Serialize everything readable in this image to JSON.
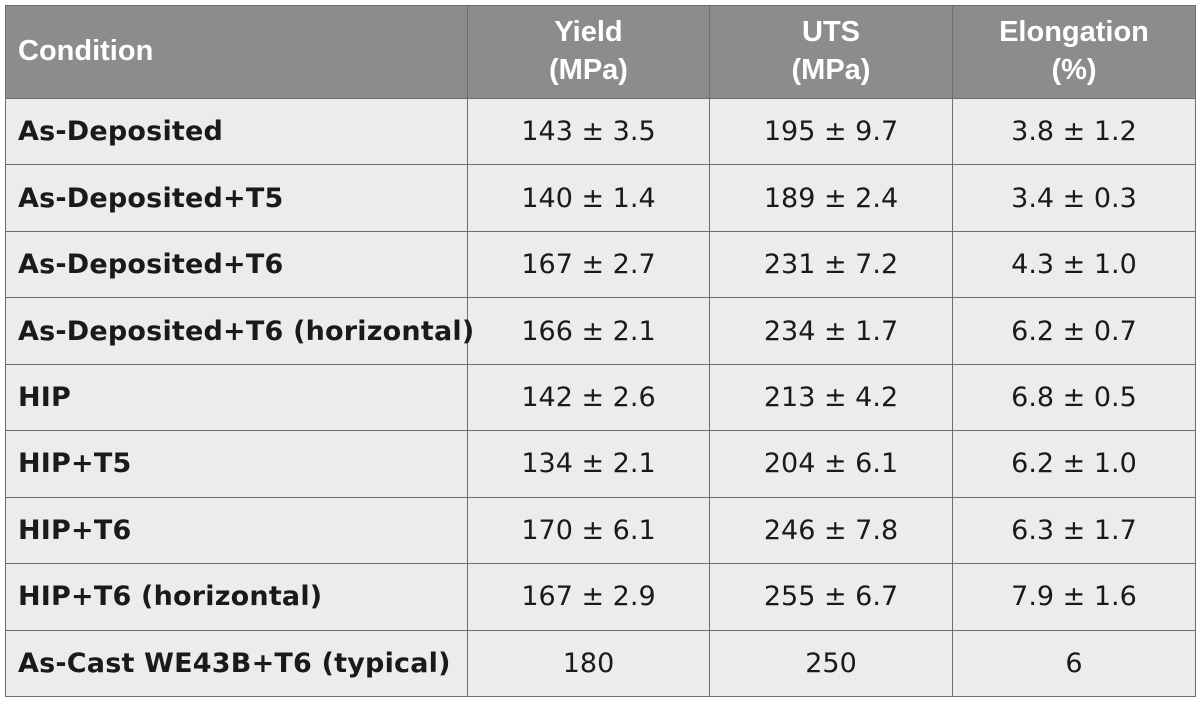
{
  "table": {
    "headers": [
      {
        "line1": "Condition",
        "line2": ""
      },
      {
        "line1": "Yield",
        "line2": "(MPa)"
      },
      {
        "line1": "UTS",
        "line2": "(MPa)"
      },
      {
        "line1": "Elongation",
        "line2": "(%)"
      }
    ],
    "rows": [
      {
        "condition": "As-Deposited",
        "yield": "143 ± 3.5",
        "uts": "195 ± 9.7",
        "elongation": "3.8 ± 1.2"
      },
      {
        "condition": "As-Deposited+T5",
        "yield": "140 ± 1.4",
        "uts": "189 ± 2.4",
        "elongation": "3.4 ± 0.3"
      },
      {
        "condition": "As-Deposited+T6",
        "yield": "167 ± 2.7",
        "uts": "231 ± 7.2",
        "elongation": "4.3 ± 1.0"
      },
      {
        "condition": "As-Deposited+T6 (horizontal)",
        "yield": "166 ± 2.1",
        "uts": "234 ± 1.7",
        "elongation": "6.2 ± 0.7"
      },
      {
        "condition": "HIP",
        "yield": "142 ± 2.6",
        "uts": "213 ± 4.2",
        "elongation": "6.8 ± 0.5"
      },
      {
        "condition": "HIP+T5",
        "yield": "134 ± 2.1",
        "uts": "204 ± 6.1",
        "elongation": "6.2 ± 1.0"
      },
      {
        "condition": "HIP+T6",
        "yield": "170 ± 6.1",
        "uts": "246 ± 7.8",
        "elongation": "6.3 ± 1.7"
      },
      {
        "condition": "HIP+T6 (horizontal)",
        "yield": "167 ± 2.9",
        "uts": "255 ± 6.7",
        "elongation": "7.9 ± 1.6"
      },
      {
        "condition": "As-Cast WE43B+T6 (typical)",
        "yield": "180",
        "uts": "250",
        "elongation": "6"
      }
    ]
  },
  "colors": {
    "header_bg": "#8c8c8c",
    "header_text": "#ffffff",
    "cell_bg": "#ececec",
    "cell_text": "#1a1a1a",
    "border": "#6e6e6e"
  }
}
